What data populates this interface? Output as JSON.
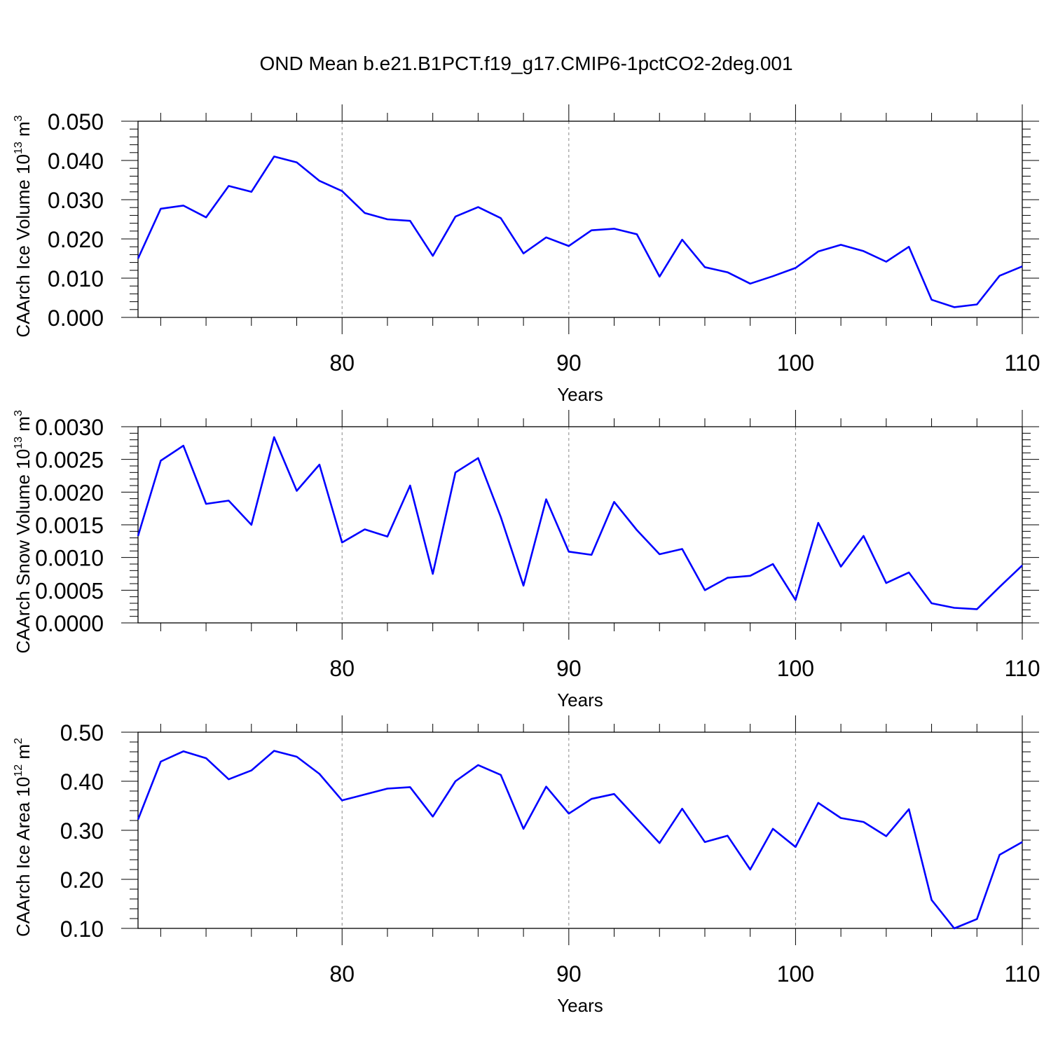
{
  "chart_data": {
    "title": "OND Mean b.e21.B1PCT.f19_g17.CMIP6-1pctCO2-2deg.001",
    "line_color": "#0000ff",
    "panels": [
      {
        "type": "line",
        "ylabel": "CAArch Ice Volume 10",
        "ylabel_exp": "13",
        "ylabel_unit": " m",
        "ylabel_unit_exp": "3",
        "xlabel": "Years",
        "xlim": [
          71,
          110
        ],
        "ylim": [
          0,
          0.05
        ],
        "yticks": [
          "0.000",
          "0.010",
          "0.020",
          "0.030",
          "0.040",
          "0.050"
        ],
        "xticks": [
          "80",
          "90",
          "100",
          "110"
        ],
        "x": [
          71,
          72,
          73,
          74,
          75,
          76,
          77,
          78,
          79,
          80,
          81,
          82,
          83,
          84,
          85,
          86,
          87,
          88,
          89,
          90,
          91,
          92,
          93,
          94,
          95,
          96,
          97,
          98,
          99,
          100,
          101,
          102,
          103,
          104,
          105,
          106,
          107,
          108,
          109,
          110
        ],
        "values": [
          0.015,
          0.0277,
          0.0285,
          0.0255,
          0.0335,
          0.032,
          0.041,
          0.0395,
          0.0348,
          0.0322,
          0.0266,
          0.025,
          0.0246,
          0.0157,
          0.0257,
          0.0281,
          0.0253,
          0.0163,
          0.0204,
          0.0182,
          0.0222,
          0.0226,
          0.0212,
          0.0104,
          0.0198,
          0.0128,
          0.0115,
          0.0086,
          0.0105,
          0.0126,
          0.0168,
          0.0185,
          0.0169,
          0.0142,
          0.018,
          0.0045,
          0.0026,
          0.0033,
          0.0106,
          0.013
        ]
      },
      {
        "type": "line",
        "ylabel": "CAArch Snow Volume 10",
        "ylabel_exp": "13",
        "ylabel_unit": " m",
        "ylabel_unit_exp": "3",
        "xlabel": "Years",
        "xlim": [
          71,
          110
        ],
        "ylim": [
          0,
          0.003
        ],
        "yticks": [
          "0.0000",
          "0.0005",
          "0.0010",
          "0.0015",
          "0.0020",
          "0.0025",
          "0.0030"
        ],
        "xticks": [
          "80",
          "90",
          "100",
          "110"
        ],
        "x": [
          71,
          72,
          73,
          74,
          75,
          76,
          77,
          78,
          79,
          80,
          81,
          82,
          83,
          84,
          85,
          86,
          87,
          88,
          89,
          90,
          91,
          92,
          93,
          94,
          95,
          96,
          97,
          98,
          99,
          100,
          101,
          102,
          103,
          104,
          105,
          106,
          107,
          108,
          109,
          110
        ],
        "values": [
          0.00133,
          0.00248,
          0.00271,
          0.00182,
          0.00187,
          0.0015,
          0.00284,
          0.00202,
          0.00242,
          0.00123,
          0.00143,
          0.00132,
          0.0021,
          0.00075,
          0.0023,
          0.00252,
          0.00162,
          0.00057,
          0.00189,
          0.00109,
          0.00104,
          0.00185,
          0.00142,
          0.00105,
          0.00113,
          0.0005,
          0.00069,
          0.00072,
          0.0009,
          0.00035,
          0.00153,
          0.00086,
          0.00133,
          0.00061,
          0.00077,
          0.0003,
          0.00023,
          0.00021,
          0.00055,
          0.00088
        ]
      },
      {
        "type": "line",
        "ylabel": "CAArch Ice Area 10",
        "ylabel_exp": "12",
        "ylabel_unit": " m",
        "ylabel_unit_exp": "2",
        "xlabel": "Years",
        "xlim": [
          71,
          110
        ],
        "ylim": [
          0.1,
          0.5
        ],
        "yticks": [
          "0.10",
          "0.20",
          "0.30",
          "0.40",
          "0.50"
        ],
        "xticks": [
          "80",
          "90",
          "100",
          "110"
        ],
        "x": [
          71,
          72,
          73,
          74,
          75,
          76,
          77,
          78,
          79,
          80,
          81,
          82,
          83,
          84,
          85,
          86,
          87,
          88,
          89,
          90,
          91,
          92,
          93,
          94,
          95,
          96,
          97,
          98,
          99,
          100,
          101,
          102,
          103,
          104,
          105,
          106,
          107,
          108,
          109,
          110
        ],
        "values": [
          0.322,
          0.44,
          0.461,
          0.447,
          0.404,
          0.422,
          0.462,
          0.45,
          0.415,
          0.361,
          0.373,
          0.385,
          0.388,
          0.328,
          0.4,
          0.433,
          0.413,
          0.303,
          0.389,
          0.334,
          0.364,
          0.374,
          0.324,
          0.274,
          0.344,
          0.276,
          0.289,
          0.22,
          0.303,
          0.266,
          0.356,
          0.325,
          0.317,
          0.288,
          0.343,
          0.158,
          0.1,
          0.119,
          0.25,
          0.276
        ]
      }
    ]
  }
}
